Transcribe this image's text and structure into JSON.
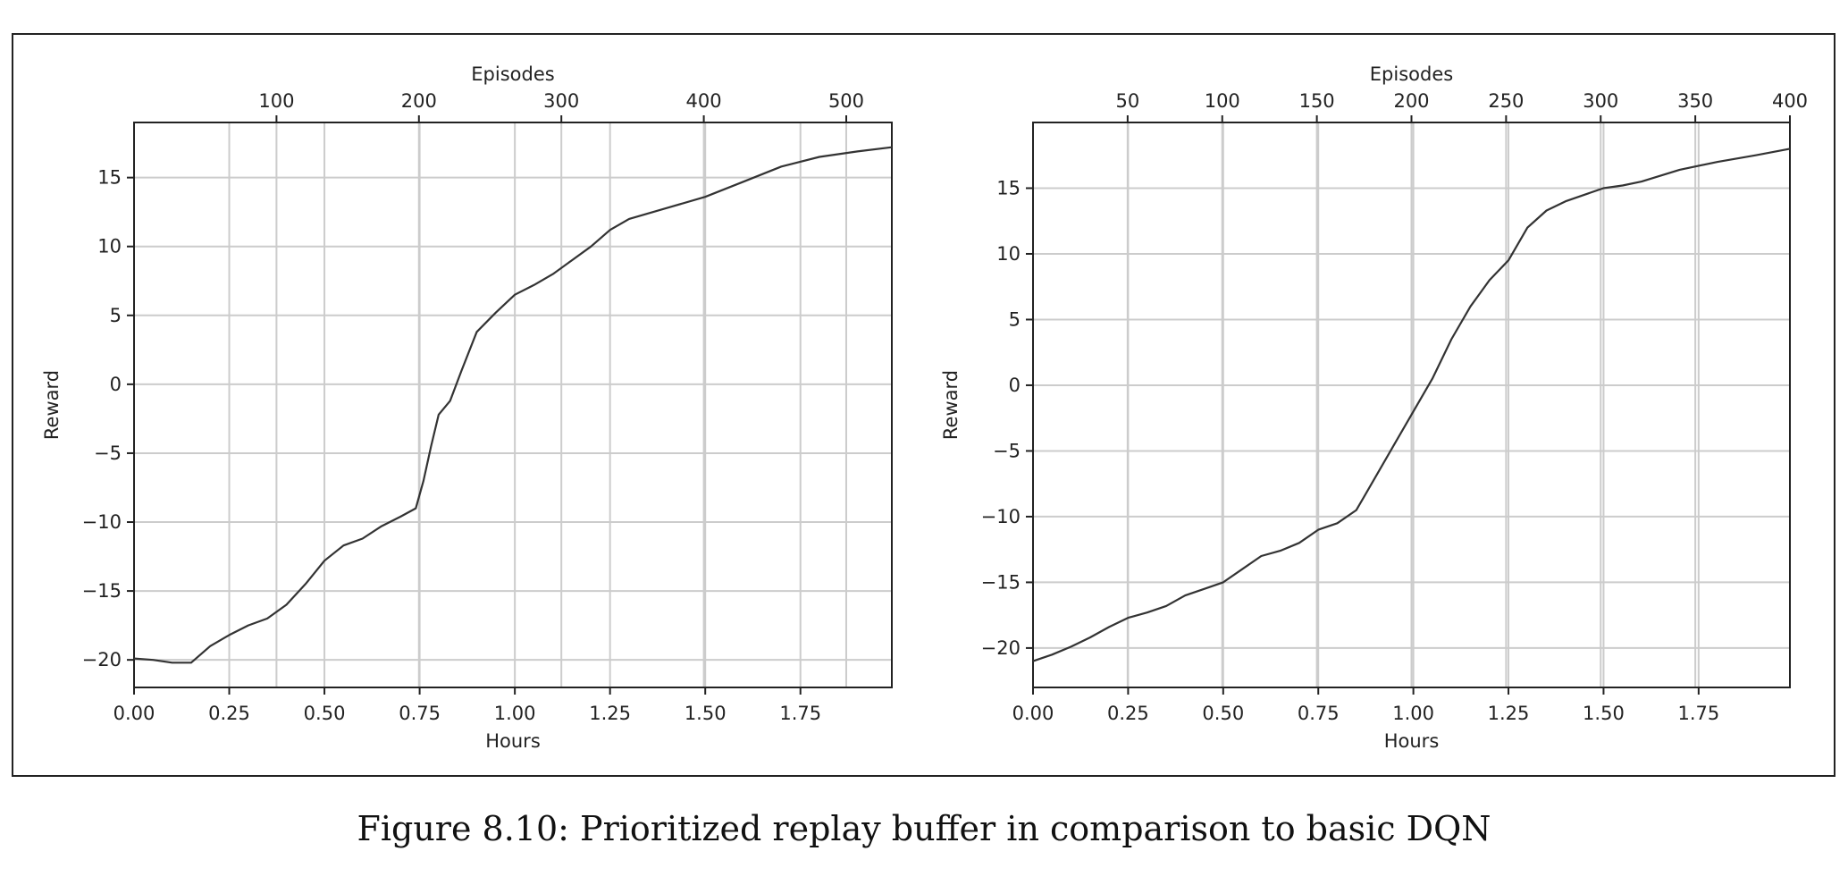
{
  "caption": "Figure 8.10: Prioritized replay buffer in comparison to basic DQN",
  "colors": {
    "line": "#333333",
    "grid": "#cccccc",
    "axis": "#222222",
    "background": "#ffffff"
  },
  "chart_data": [
    {
      "type": "line",
      "title": "",
      "xlabel": "Hours",
      "ylabel": "Reward",
      "secondary_xlabel": "Episodes",
      "xlim": [
        0,
        1.99
      ],
      "ylim": [
        -22,
        19
      ],
      "grid": true,
      "x_ticks": [
        0.0,
        0.25,
        0.5,
        0.75,
        1.0,
        1.25,
        1.5,
        1.75
      ],
      "x_tick_labels": [
        "0.00",
        "0.25",
        "0.50",
        "0.75",
        "1.00",
        "1.25",
        "1.50",
        "1.75"
      ],
      "y_ticks": [
        -20,
        -15,
        -10,
        -5,
        0,
        5,
        10,
        15
      ],
      "y_tick_labels": [
        "−20",
        "−15",
        "−10",
        "−5",
        "0",
        "5",
        "10",
        "15"
      ],
      "secondary_xlim": [
        0,
        532
      ],
      "secondary_x_ticks": [
        100,
        200,
        300,
        400,
        500
      ],
      "secondary_x_tick_labels": [
        "100",
        "200",
        "300",
        "400",
        "500"
      ],
      "series": [
        {
          "x": [
            0.0,
            0.05,
            0.1,
            0.15,
            0.2,
            0.25,
            0.3,
            0.35,
            0.4,
            0.45,
            0.5,
            0.55,
            0.6,
            0.65,
            0.7,
            0.74,
            0.76,
            0.78,
            0.8,
            0.83,
            0.86,
            0.9,
            0.95,
            1.0,
            1.05,
            1.1,
            1.15,
            1.2,
            1.25,
            1.3,
            1.4,
            1.5,
            1.6,
            1.7,
            1.8,
            1.9,
            1.99
          ],
          "y": [
            -19.9,
            -20.0,
            -20.2,
            -20.2,
            -19.0,
            -18.2,
            -17.5,
            -17.0,
            -16.0,
            -14.5,
            -12.8,
            -11.7,
            -11.2,
            -10.3,
            -9.6,
            -9.0,
            -7.0,
            -4.5,
            -2.2,
            -1.2,
            1.0,
            3.8,
            5.2,
            6.5,
            7.2,
            8.0,
            9.0,
            10.0,
            11.2,
            12.0,
            12.8,
            13.6,
            14.7,
            15.8,
            16.5,
            16.9,
            17.2
          ]
        }
      ]
    },
    {
      "type": "line",
      "title": "",
      "xlabel": "Hours",
      "ylabel": "Reward",
      "secondary_xlabel": "Episodes",
      "xlim": [
        0,
        1.99
      ],
      "ylim": [
        -23,
        20
      ],
      "grid": true,
      "x_ticks": [
        0.0,
        0.25,
        0.5,
        0.75,
        1.0,
        1.25,
        1.5,
        1.75
      ],
      "x_tick_labels": [
        "0.00",
        "0.25",
        "0.50",
        "0.75",
        "1.00",
        "1.25",
        "1.50",
        "1.75"
      ],
      "y_ticks": [
        -20,
        -15,
        -10,
        -5,
        0,
        5,
        10,
        15
      ],
      "y_tick_labels": [
        "−20",
        "−15",
        "−10",
        "−5",
        "0",
        "5",
        "10",
        "15"
      ],
      "secondary_xlim": [
        0,
        400
      ],
      "secondary_x_ticks": [
        50,
        100,
        150,
        200,
        250,
        300,
        350,
        400
      ],
      "secondary_x_tick_labels": [
        "50",
        "100",
        "150",
        "200",
        "250",
        "300",
        "350",
        "400"
      ],
      "series": [
        {
          "x": [
            0.0,
            0.05,
            0.1,
            0.15,
            0.2,
            0.25,
            0.3,
            0.35,
            0.4,
            0.45,
            0.5,
            0.55,
            0.6,
            0.65,
            0.7,
            0.75,
            0.8,
            0.85,
            0.9,
            0.95,
            1.0,
            1.05,
            1.1,
            1.15,
            1.2,
            1.25,
            1.3,
            1.35,
            1.4,
            1.45,
            1.5,
            1.55,
            1.6,
            1.7,
            1.8,
            1.9,
            1.99
          ],
          "y": [
            -21.0,
            -20.5,
            -19.9,
            -19.2,
            -18.4,
            -17.7,
            -17.3,
            -16.8,
            -16.0,
            -15.5,
            -15.0,
            -14.0,
            -13.0,
            -12.6,
            -12.0,
            -11.0,
            -10.5,
            -9.5,
            -7.0,
            -4.5,
            -2.0,
            0.5,
            3.5,
            6.0,
            8.0,
            9.5,
            12.0,
            13.3,
            14.0,
            14.5,
            15.0,
            15.2,
            15.5,
            16.4,
            17.0,
            17.5,
            18.0
          ]
        }
      ]
    }
  ]
}
